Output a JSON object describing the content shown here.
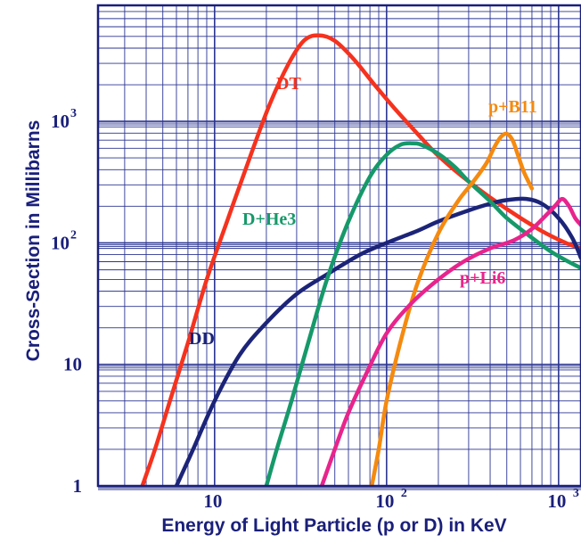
{
  "chart_data": {
    "type": "line",
    "xlabel": "Energy of Light Particle (p or D) in KeV",
    "ylabel": "Cross-Section in Millibarns",
    "x_scale": "log",
    "y_scale": "log",
    "xlim": [
      2.1,
      1350
    ],
    "ylim": [
      1,
      9000
    ],
    "grid": true,
    "x_ticks": [
      {
        "value": 10,
        "base": "10",
        "exp": ""
      },
      {
        "value": 100,
        "base": "10",
        "exp": "2"
      },
      {
        "value": 1000,
        "base": "10",
        "exp": "3"
      }
    ],
    "y_ticks": [
      {
        "value": 1,
        "base": "1",
        "exp": ""
      },
      {
        "value": 10,
        "base": "10",
        "exp": ""
      },
      {
        "value": 100,
        "base": "10",
        "exp": "2"
      },
      {
        "value": 1000,
        "base": "10",
        "exp": "3"
      }
    ],
    "colors": {
      "axis_text": "#1a1f7a",
      "grid": "#2b3590",
      "frame": "#1a1f7a"
    },
    "series": [
      {
        "name": "DT",
        "color": "#f5321e",
        "points": [
          [
            3.8,
            1
          ],
          [
            4.5,
            2
          ],
          [
            5.5,
            5
          ],
          [
            7,
            15
          ],
          [
            9,
            50
          ],
          [
            12,
            160
          ],
          [
            16,
            500
          ],
          [
            21,
            1400
          ],
          [
            27,
            3000
          ],
          [
            33,
            4600
          ],
          [
            40,
            5100
          ],
          [
            50,
            4600
          ],
          [
            65,
            3200
          ],
          [
            85,
            2000
          ],
          [
            110,
            1300
          ],
          [
            150,
            800
          ],
          [
            200,
            520
          ],
          [
            300,
            320
          ],
          [
            500,
            190
          ],
          [
            800,
            125
          ],
          [
            1100,
            100
          ],
          [
            1350,
            90
          ]
        ]
      },
      {
        "name": "DD",
        "color": "#1c2478",
        "points": [
          [
            6,
            1
          ],
          [
            7.5,
            2
          ],
          [
            10,
            5
          ],
          [
            14,
            12
          ],
          [
            20,
            22
          ],
          [
            30,
            38
          ],
          [
            45,
            55
          ],
          [
            70,
            80
          ],
          [
            100,
            100
          ],
          [
            150,
            125
          ],
          [
            200,
            150
          ],
          [
            300,
            185
          ],
          [
            400,
            210
          ],
          [
            500,
            225
          ],
          [
            650,
            230
          ],
          [
            800,
            210
          ],
          [
            1000,
            160
          ],
          [
            1200,
            110
          ],
          [
            1350,
            75
          ]
        ]
      },
      {
        "name": "D+He3",
        "color": "#16996a",
        "points": [
          [
            20,
            1
          ],
          [
            23,
            2
          ],
          [
            28,
            5
          ],
          [
            35,
            15
          ],
          [
            45,
            50
          ],
          [
            60,
            150
          ],
          [
            80,
            350
          ],
          [
            100,
            530
          ],
          [
            120,
            640
          ],
          [
            140,
            660
          ],
          [
            160,
            640
          ],
          [
            200,
            540
          ],
          [
            250,
            420
          ],
          [
            300,
            320
          ],
          [
            400,
            220
          ],
          [
            500,
            160
          ],
          [
            700,
            110
          ],
          [
            900,
            85
          ],
          [
            1100,
            72
          ],
          [
            1350,
            62
          ]
        ]
      },
      {
        "name": "p+B11",
        "color": "#f58a0f",
        "points": [
          [
            82,
            1
          ],
          [
            90,
            2
          ],
          [
            100,
            5
          ],
          [
            120,
            15
          ],
          [
            150,
            45
          ],
          [
            200,
            120
          ],
          [
            260,
            220
          ],
          [
            320,
            320
          ],
          [
            380,
            450
          ],
          [
            420,
            600
          ],
          [
            460,
            740
          ],
          [
            500,
            790
          ],
          [
            540,
            700
          ],
          [
            580,
            530
          ],
          [
            630,
            380
          ],
          [
            700,
            280
          ]
        ]
      },
      {
        "name": "p+Li6",
        "color": "#e8248c",
        "points": [
          [
            42,
            1
          ],
          [
            50,
            2
          ],
          [
            60,
            4
          ],
          [
            75,
            8
          ],
          [
            100,
            18
          ],
          [
            140,
            32
          ],
          [
            200,
            50
          ],
          [
            280,
            70
          ],
          [
            400,
            90
          ],
          [
            550,
            105
          ],
          [
            700,
            130
          ],
          [
            850,
            170
          ],
          [
            950,
            200
          ],
          [
            1050,
            230
          ],
          [
            1150,
            200
          ],
          [
            1250,
            160
          ],
          [
            1350,
            140
          ]
        ]
      }
    ]
  }
}
